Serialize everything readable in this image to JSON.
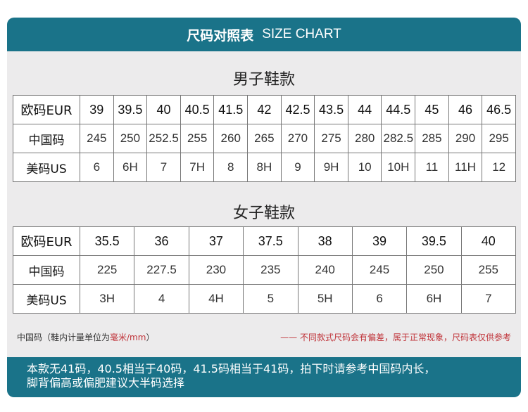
{
  "header": {
    "title_cn": "尺码对照表",
    "title_en": "SIZE  CHART"
  },
  "colors": {
    "accent": "#1a7389",
    "background": "#ecebec",
    "warning": "#c0343a"
  },
  "men": {
    "title": "男子鞋款",
    "rows": [
      {
        "label": "欧码EUR",
        "values": [
          "39",
          "39.5",
          "40",
          "40.5",
          "41.5",
          "42",
          "42.5",
          "43.5",
          "44",
          "44.5",
          "45",
          "46",
          "46.5"
        ]
      },
      {
        "label": "中国码",
        "values": [
          "245",
          "250",
          "252.5",
          "255",
          "260",
          "265",
          "270",
          "275",
          "280",
          "282.5",
          "285",
          "290",
          "295"
        ]
      },
      {
        "label": "美码US",
        "values": [
          "6",
          "6H",
          "7",
          "7H",
          "8",
          "8H",
          "9",
          "9H",
          "10",
          "10H",
          "11",
          "11H",
          "12"
        ]
      }
    ]
  },
  "women": {
    "title": "女子鞋款",
    "rows": [
      {
        "label": "欧码EUR",
        "values": [
          "35.5",
          "36",
          "37",
          "37.5",
          "38",
          "39",
          "39.5",
          "40"
        ]
      },
      {
        "label": "中国码",
        "values": [
          "225",
          "227.5",
          "230",
          "235",
          "240",
          "245",
          "250",
          "255"
        ]
      },
      {
        "label": "美码US",
        "values": [
          "3H",
          "4",
          "4H",
          "5",
          "5H",
          "6",
          "6H",
          "7"
        ]
      }
    ]
  },
  "note": {
    "left_prefix": "中国码（鞋内计量单位为",
    "left_unit": "毫米/mm",
    "left_suffix": "）",
    "right": "—— 不同款式尺码会有偏差，属于正常现象，尺码表仅供参考"
  },
  "footer": {
    "line1": "本款无41码，40.5相当于40码，41.5码相当于41码，拍下时请参考中国码内长，",
    "line2": "脚背偏高或偏肥建议大半码选择"
  }
}
